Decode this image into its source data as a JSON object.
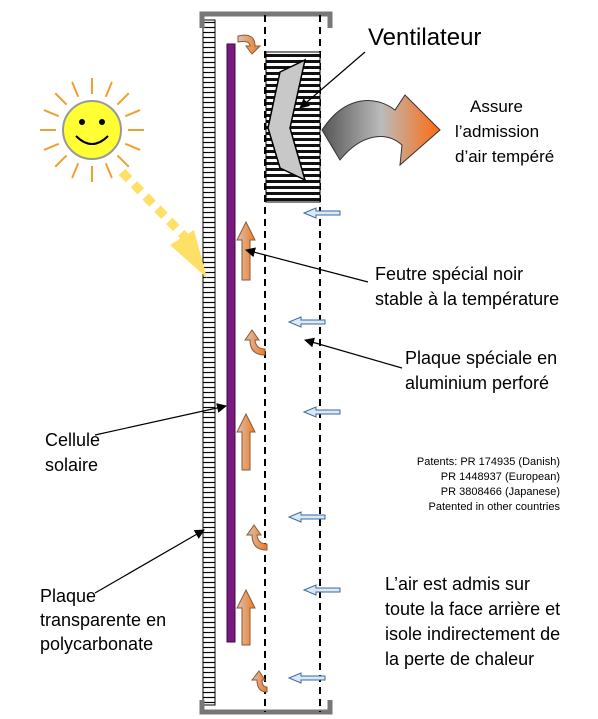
{
  "fan": {
    "label": "Ventilateur"
  },
  "outlet": {
    "lines": [
      "Assure",
      "l’admission",
      "d’air tempéré"
    ]
  },
  "felt": {
    "lines": [
      "Feutre spécial noir",
      "stable à la température"
    ]
  },
  "plate": {
    "lines": [
      "Plaque spéciale en",
      "aluminium perforé"
    ]
  },
  "cell": {
    "lines": [
      "Cellule",
      "solaire"
    ]
  },
  "cover": {
    "lines": [
      "Plaque",
      "transparente en",
      "polycarbonate"
    ]
  },
  "patents": {
    "lines": [
      "Patents: PR 174935 (Danish)",
      "PR 1448937 (European)",
      "PR 3808466 (Japanese)",
      "Patented in other countries"
    ]
  },
  "air": {
    "lines": [
      "L’air est admis sur",
      "toute la face arrière et",
      "isole indirectement de",
      "la perte de chaleur"
    ]
  }
}
